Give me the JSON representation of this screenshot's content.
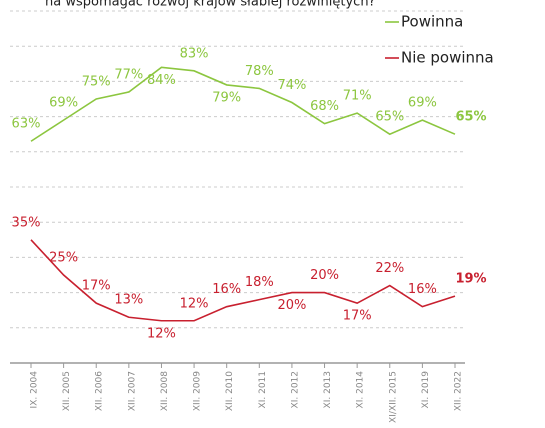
{
  "chart_data": {
    "type": "line",
    "title": "na wspomagać rozwój krajów słabiej rozwiniętych?",
    "categories": [
      "IX. 2004",
      "XII. 2005",
      "XII. 2006",
      "XII. 2007",
      "XII. 2008",
      "XII. 2009",
      "XII. 2010",
      "XI. 2011",
      "XI. 2012",
      "XI. 2013",
      "XI. 2014",
      "XI/XII. 2015",
      "XI. 2019",
      "XII. 2022"
    ],
    "series": [
      {
        "name": "Powinna",
        "color": "#8cc63f",
        "values": [
          63,
          69,
          75,
          77,
          84,
          83,
          79,
          78,
          74,
          68,
          71,
          65,
          69,
          65
        ],
        "value_labels": [
          "63%",
          "69%",
          "75%",
          "77%",
          "84%",
          "83%",
          "79%",
          "78%",
          "74%",
          "68%",
          "71%",
          "65%",
          "69%",
          "65%"
        ]
      },
      {
        "name": "Nie powinna",
        "color": "#c8202f",
        "values": [
          35,
          25,
          17,
          13,
          12,
          12,
          16,
          18,
          20,
          20,
          17,
          22,
          16,
          19
        ],
        "value_labels": [
          "35%",
          "25%",
          "17%",
          "13%",
          "12%",
          "12%",
          "16%",
          "18%",
          "20%",
          "20%",
          "17%",
          "22%",
          "16%",
          "19%"
        ]
      }
    ],
    "ylim": [
      0,
      100
    ],
    "yticks": [
      0,
      10,
      20,
      30,
      40,
      50,
      60,
      70,
      80,
      90,
      100
    ],
    "grid": true
  }
}
